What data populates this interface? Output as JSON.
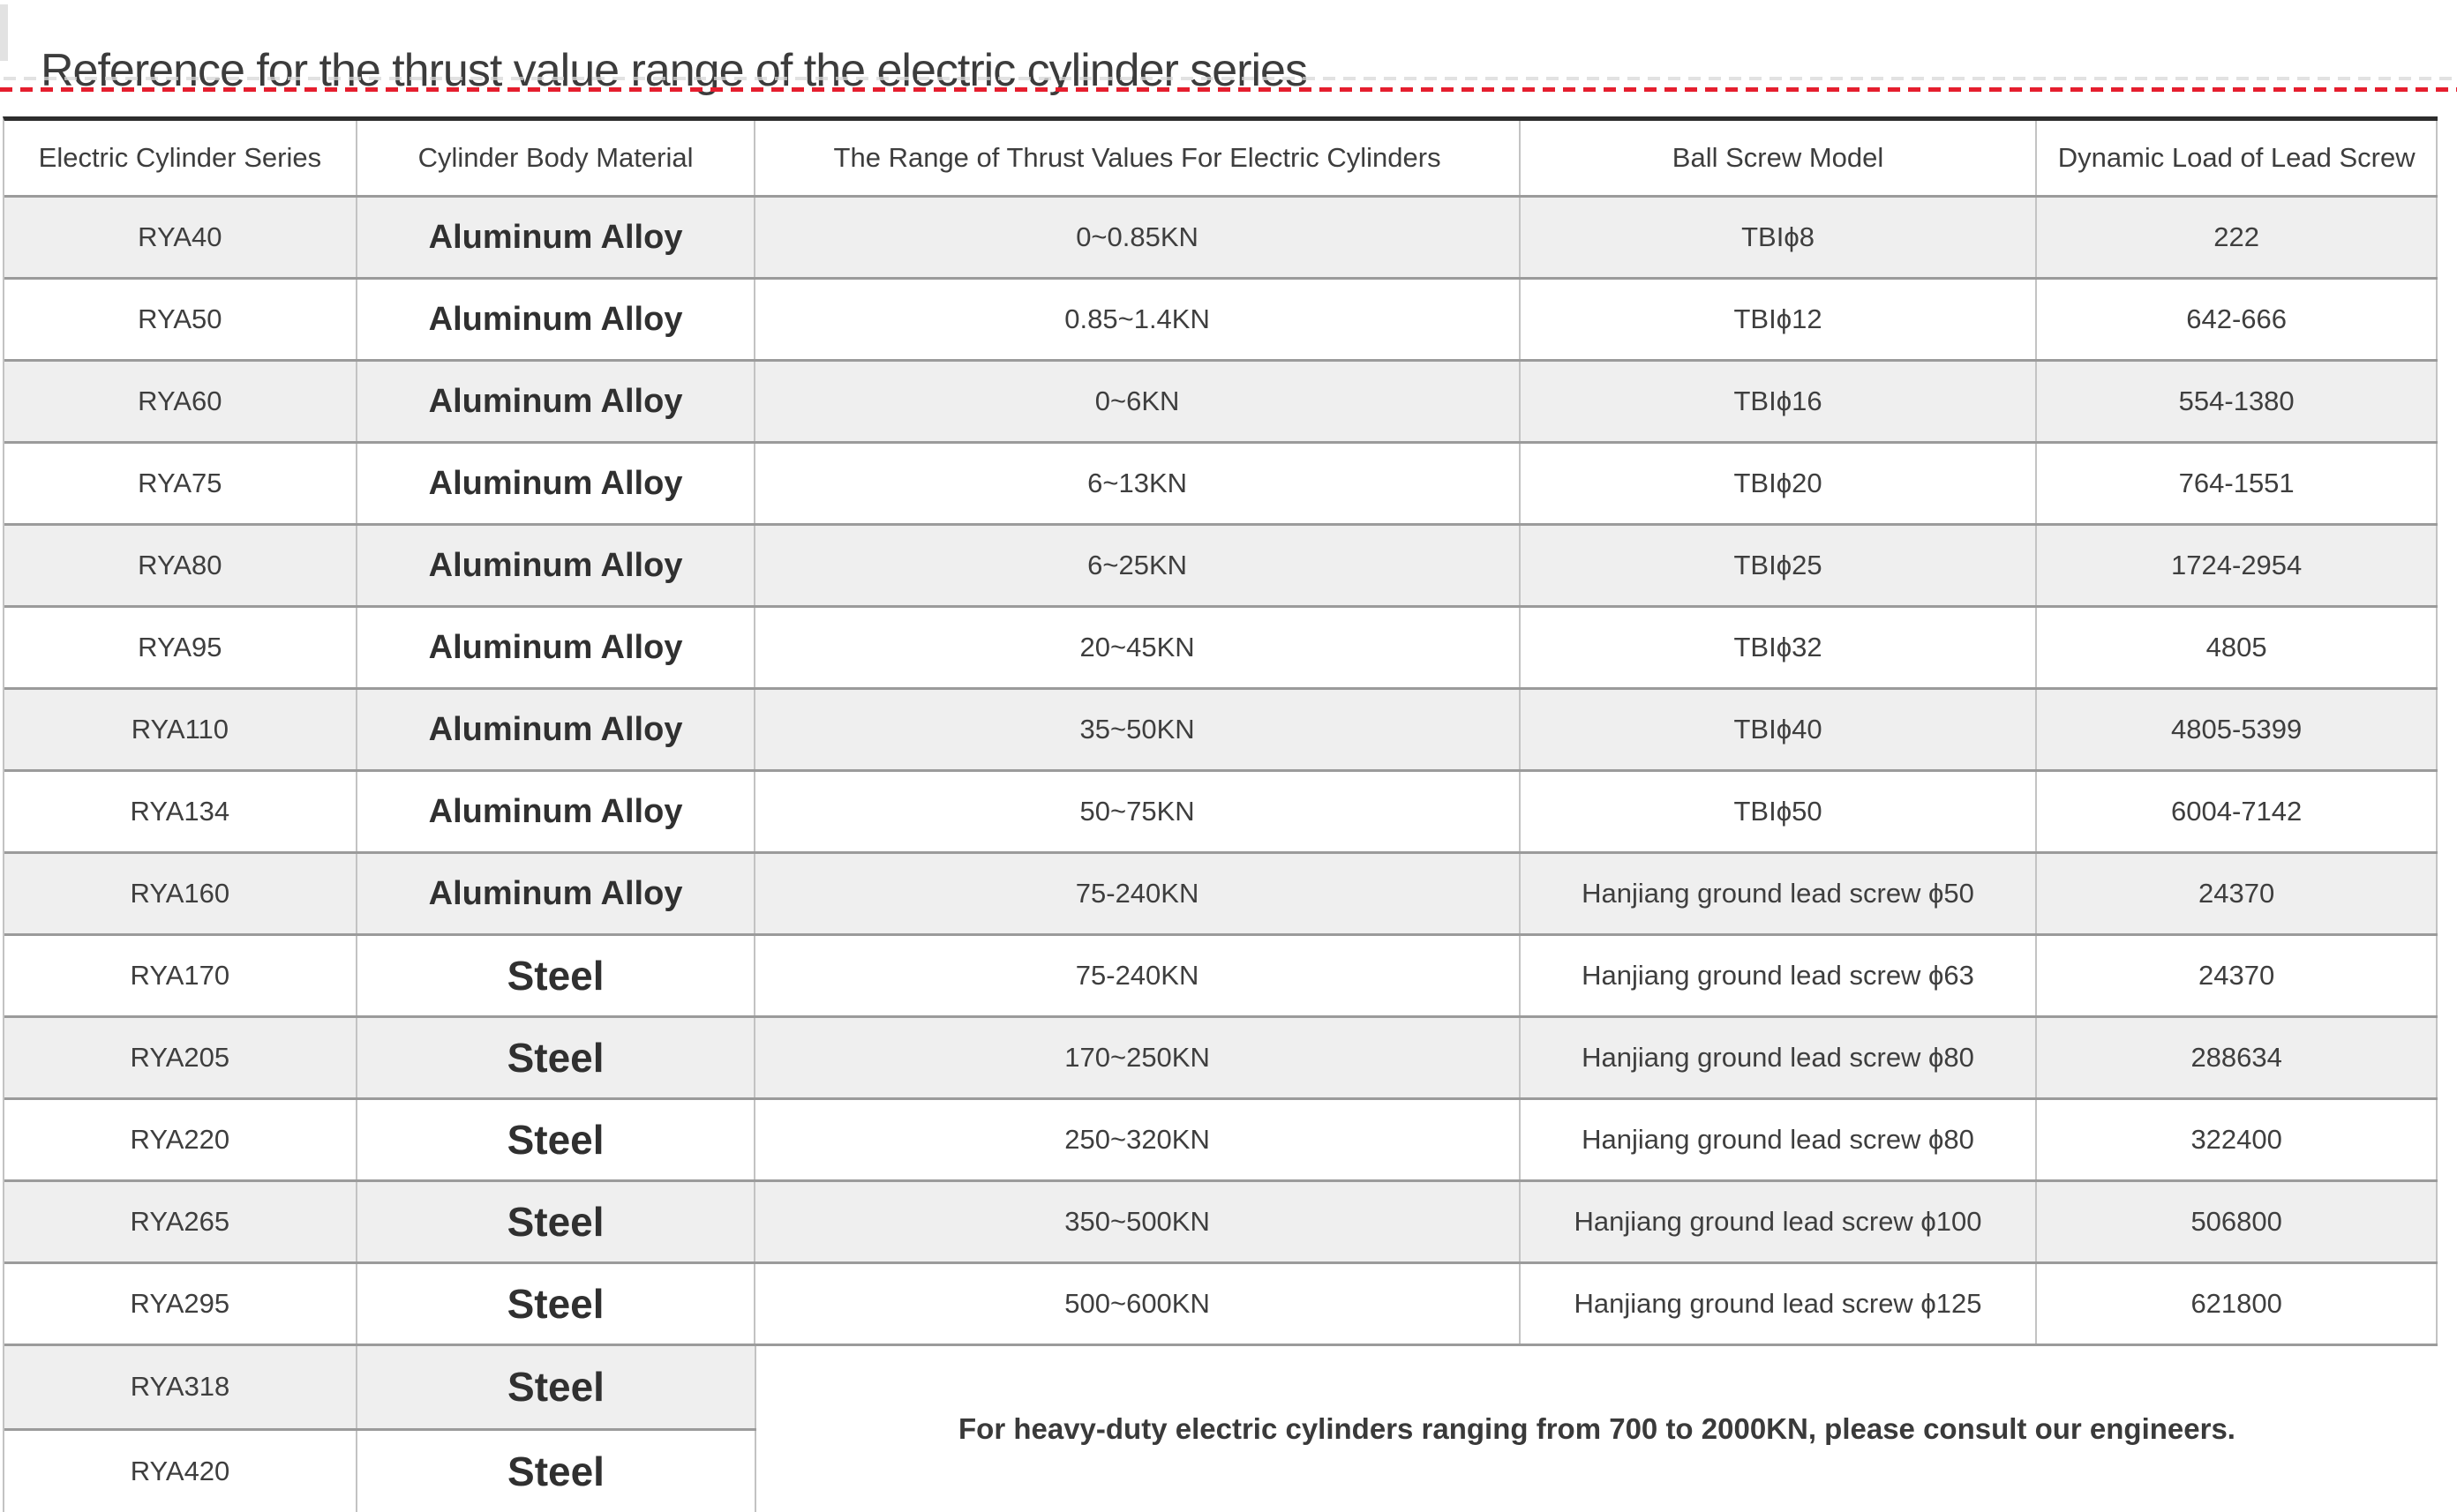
{
  "page": {
    "title": "Reference for the thrust value range of the electric cylinder series"
  },
  "colors": {
    "accent_red": "#e51e2e",
    "row_stripe": "#efefef",
    "border_dark": "#2d2d2d",
    "border_horizontal": "#9b9b9b",
    "border_vertical": "#c3c3c3",
    "text": "#3e3e3e"
  },
  "table": {
    "columns": [
      "Electric Cylinder Series",
      "Cylinder Body Material",
      "The Range of Thrust Values For Electric Cylinders",
      "Ball Screw Model",
      "Dynamic Load of Lead Screw"
    ],
    "rows": [
      {
        "series": "RYA40",
        "material": "Aluminum Alloy",
        "thrust": "0~0.85KN",
        "screw": "TBIϕ8",
        "load": "222"
      },
      {
        "series": "RYA50",
        "material": "Aluminum Alloy",
        "thrust": "0.85~1.4KN",
        "screw": "TBIϕ12",
        "load": "642-666"
      },
      {
        "series": "RYA60",
        "material": "Aluminum Alloy",
        "thrust": "0~6KN",
        "screw": "TBIϕ16",
        "load": "554-1380"
      },
      {
        "series": "RYA75",
        "material": "Aluminum Alloy",
        "thrust": "6~13KN",
        "screw": "TBIϕ20",
        "load": "764-1551"
      },
      {
        "series": "RYA80",
        "material": "Aluminum Alloy",
        "thrust": "6~25KN",
        "screw": "TBIϕ25",
        "load": "1724-2954"
      },
      {
        "series": "RYA95",
        "material": "Aluminum Alloy",
        "thrust": "20~45KN",
        "screw": "TBIϕ32",
        "load": "4805"
      },
      {
        "series": "RYA110",
        "material": "Aluminum Alloy",
        "thrust": "35~50KN",
        "screw": "TBIϕ40",
        "load": "4805-5399"
      },
      {
        "series": "RYA134",
        "material": "Aluminum Alloy",
        "thrust": "50~75KN",
        "screw": "TBIϕ50",
        "load": "6004-7142"
      },
      {
        "series": "RYA160",
        "material": "Aluminum Alloy",
        "thrust": "75-240KN",
        "screw": "Hanjiang ground lead screw ϕ50",
        "load": "24370"
      },
      {
        "series": "RYA170",
        "material": "Steel",
        "thrust": "75-240KN",
        "screw": "Hanjiang ground lead screw ϕ63",
        "load": "24370"
      },
      {
        "series": "RYA205",
        "material": "Steel",
        "thrust": "170~250KN",
        "screw": "Hanjiang ground lead screw ϕ80",
        "load": "288634"
      },
      {
        "series": "RYA220",
        "material": "Steel",
        "thrust": "250~320KN",
        "screw": "Hanjiang ground lead screw ϕ80",
        "load": "322400"
      },
      {
        "series": "RYA265",
        "material": "Steel",
        "thrust": "350~500KN",
        "screw": "Hanjiang ground lead screw ϕ100",
        "load": "506800"
      },
      {
        "series": "RYA295",
        "material": "Steel",
        "thrust": "500~600KN",
        "screw": "Hanjiang ground lead screw ϕ125",
        "load": "621800"
      }
    ],
    "extra_rows": [
      {
        "series": "RYA318",
        "material": "Steel"
      },
      {
        "series": "RYA420",
        "material": "Steel"
      }
    ],
    "note": "For heavy-duty electric cylinders ranging from 700 to 2000KN, please consult our engineers."
  }
}
